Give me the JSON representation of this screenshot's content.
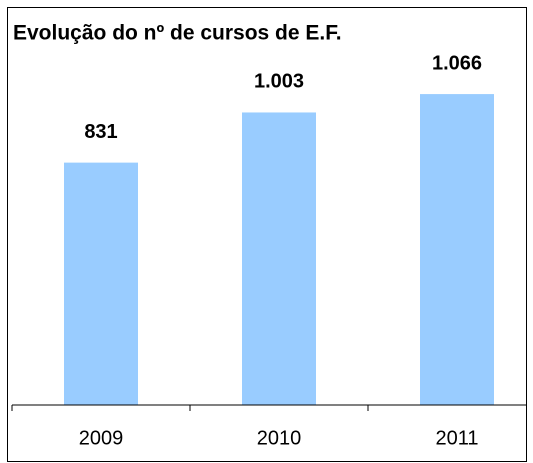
{
  "chart_data": {
    "type": "bar",
    "title": "Evolução do nº de cursos de E.F.",
    "categories": [
      "2009",
      "2010",
      "2011"
    ],
    "values": [
      831,
      1003,
      1066
    ],
    "value_labels": [
      "831",
      "1.003",
      "1.066"
    ],
    "color": "#99ccff",
    "ylim": [
      0,
      1200
    ]
  }
}
